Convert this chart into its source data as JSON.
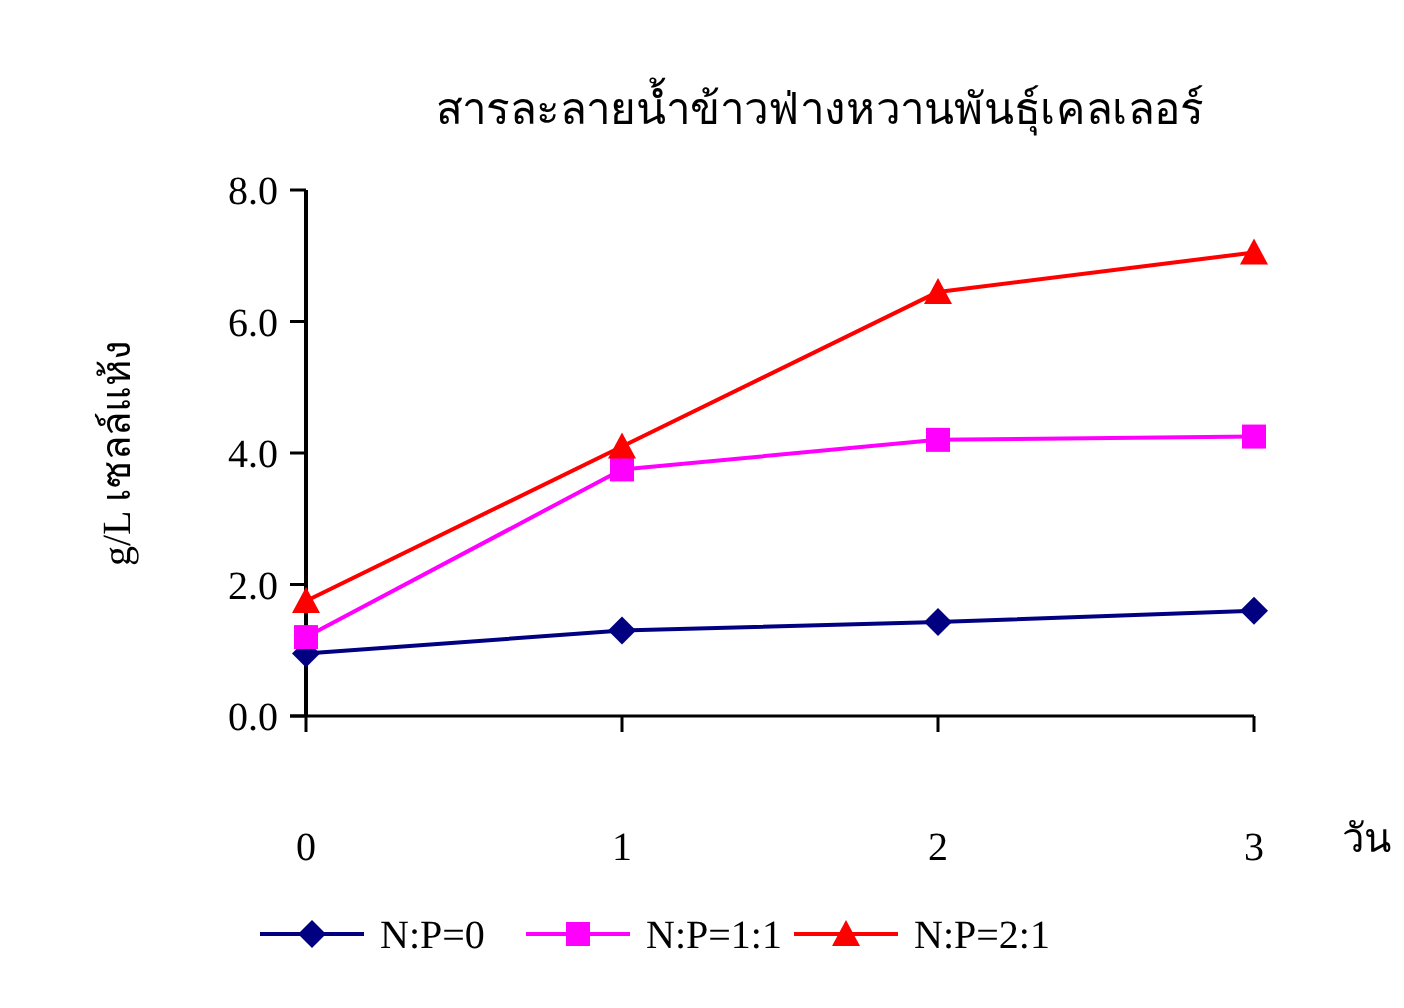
{
  "chart_data": {
    "type": "line",
    "title": "สารละลายน้ำข้าวฟ่างหวานพันธุ์เคลเลอร์",
    "xlabel": "วัน",
    "ylabel": "g/L เซลล์แห้ง",
    "x": [
      0,
      1,
      2,
      3
    ],
    "xlim": [
      0,
      3
    ],
    "xticks": [
      0,
      1,
      2,
      3
    ],
    "ylim": [
      0,
      8
    ],
    "yticks": [
      {
        "value": 0,
        "label": "0.0"
      },
      {
        "value": 2,
        "label": "2.0"
      },
      {
        "value": 4,
        "label": "4.0"
      },
      {
        "value": 6,
        "label": "6.0"
      },
      {
        "value": 8,
        "label": "8.0"
      }
    ],
    "grid": false,
    "legend": "bottom",
    "line_style": "solid",
    "series": [
      {
        "name": "N:P=0",
        "color": "#000080",
        "marker": "diamond",
        "values": [
          0.95,
          1.3,
          1.43,
          1.6
        ]
      },
      {
        "name": "N:P=1:1",
        "color": "#ff00ff",
        "marker": "square",
        "values": [
          1.2,
          3.75,
          4.2,
          4.25
        ]
      },
      {
        "name": "N:P=2:1",
        "color": "#ff0000",
        "marker": "triangle",
        "values": [
          1.75,
          4.1,
          6.45,
          7.05
        ]
      }
    ]
  }
}
